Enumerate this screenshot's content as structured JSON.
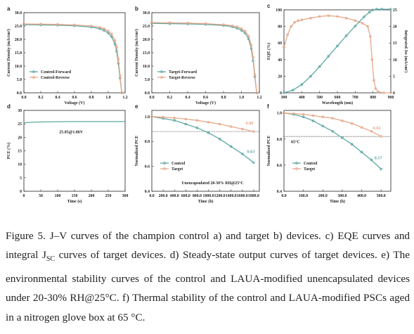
{
  "colors": {
    "control": "#5fa8a3",
    "target": "#e6a98c",
    "axis": "#222222"
  },
  "panels": {
    "a": {
      "letter": "a",
      "xlabel": "Voltage (V)",
      "ylabel": "Current Density (mA/cm²)",
      "legend": [
        "Control-Forward",
        "Control-Reverse"
      ]
    },
    "b": {
      "letter": "b",
      "xlabel": "Voltage (V)",
      "ylabel": "Current Density (mA/cm²)",
      "legend": [
        "Target-Forward",
        "Target-Reverse"
      ]
    },
    "c": {
      "letter": "c",
      "xlabel": "Wavelength (nm)",
      "ylabel": "EQE (%)",
      "ylabel2": "Integrated Jsc (mA/cm²)"
    },
    "d": {
      "letter": "d",
      "xlabel": "Time (s)",
      "ylabel": "PCE (%)",
      "annotation": "25.85@1.06V"
    },
    "e": {
      "letter": "e",
      "xlabel": "Time (h)",
      "ylabel": "Normalized PCE",
      "legend": [
        "Control",
        "Target"
      ],
      "note": "Unencapsulated 20-30% RH@25°C",
      "label_target": "0.88",
      "label_control": "0.63"
    },
    "f": {
      "letter": "f",
      "xlabel": "Time (h)",
      "ylabel": "Normalized PCE",
      "legend": [
        "Control",
        "Target"
      ],
      "note": "65°C",
      "label_target": "0.82",
      "label_control": "0.57"
    }
  },
  "chart_data": [
    {
      "panel": "a",
      "type": "line",
      "xlabel": "Voltage (V)",
      "ylabel": "Current Density (mA/cm²)",
      "xlim": [
        0,
        1.2
      ],
      "ylim": [
        0,
        30
      ],
      "xticks": [
        0.0,
        0.2,
        0.4,
        0.6,
        0.8,
        1.0,
        1.2
      ],
      "yticks": [
        0,
        5,
        10,
        15,
        20,
        25,
        30
      ],
      "series": [
        {
          "name": "Control-Forward",
          "color": "control",
          "x": [
            0,
            0.2,
            0.4,
            0.6,
            0.8,
            0.9,
            0.95,
            1.0,
            1.04,
            1.08,
            1.1,
            1.12,
            1.14,
            1.16
          ],
          "y": [
            25.5,
            25.4,
            25.3,
            25.1,
            24.6,
            24.0,
            23.4,
            22.4,
            21.0,
            18.2,
            15.5,
            11.0,
            5.5,
            0.0
          ]
        },
        {
          "name": "Control-Reverse",
          "color": "target",
          "x": [
            0,
            0.2,
            0.4,
            0.6,
            0.8,
            0.9,
            0.95,
            1.0,
            1.04,
            1.08,
            1.1,
            1.12,
            1.14,
            1.16
          ],
          "y": [
            25.8,
            25.7,
            25.6,
            25.4,
            25.0,
            24.5,
            24.0,
            23.1,
            22.0,
            19.6,
            17.2,
            12.6,
            6.5,
            0.0
          ]
        }
      ]
    },
    {
      "panel": "b",
      "type": "line",
      "xlabel": "Voltage (V)",
      "ylabel": "Current Density (mA/cm²)",
      "xlim": [
        0,
        1.2
      ],
      "ylim": [
        0,
        30
      ],
      "xticks": [
        0.0,
        0.2,
        0.4,
        0.6,
        0.8,
        1.0,
        1.2
      ],
      "yticks": [
        0,
        5,
        10,
        15,
        20,
        25,
        30
      ],
      "series": [
        {
          "name": "Target-Forward",
          "color": "control",
          "x": [
            0,
            0.2,
            0.4,
            0.6,
            0.8,
            0.9,
            0.95,
            1.0,
            1.04,
            1.08,
            1.11,
            1.13,
            1.15,
            1.17
          ],
          "y": [
            26.0,
            25.9,
            25.8,
            25.6,
            25.2,
            24.7,
            24.2,
            23.4,
            22.4,
            20.2,
            16.5,
            12.0,
            6.0,
            0.0
          ]
        },
        {
          "name": "Target-Reverse",
          "color": "target",
          "x": [
            0,
            0.2,
            0.4,
            0.6,
            0.8,
            0.9,
            0.95,
            1.0,
            1.04,
            1.08,
            1.11,
            1.13,
            1.15,
            1.17
          ],
          "y": [
            26.3,
            26.2,
            26.1,
            25.9,
            25.5,
            25.1,
            24.7,
            24.0,
            23.1,
            21.2,
            17.8,
            13.2,
            6.8,
            0.0
          ]
        }
      ]
    },
    {
      "panel": "c",
      "type": "line",
      "xlabel": "Wavelength (nm)",
      "ylabel": "EQE (%)",
      "y2label": "Integrated Jsc (mA/cm²)",
      "xlim": [
        300,
        900
      ],
      "ylim": [
        0,
        100
      ],
      "y2lim": [
        0,
        25
      ],
      "xticks": [
        300,
        400,
        500,
        600,
        700,
        800,
        900
      ],
      "yticks": [
        0,
        20,
        40,
        60,
        80,
        100
      ],
      "y2ticks": [
        0,
        5,
        10,
        15,
        20,
        25
      ],
      "series": [
        {
          "name": "EQE",
          "color": "target",
          "x": [
            300,
            320,
            340,
            360,
            380,
            400,
            450,
            500,
            550,
            600,
            650,
            700,
            740,
            770,
            785,
            795,
            805,
            815,
            830,
            860,
            900
          ],
          "y": [
            55,
            70,
            80,
            85,
            87,
            88,
            90,
            92,
            93,
            92,
            90,
            87,
            84,
            80,
            68,
            40,
            15,
            5,
            1,
            0,
            0
          ]
        },
        {
          "name": "Integrated Jsc",
          "color": "control",
          "axis": "y2",
          "x": [
            300,
            350,
            400,
            450,
            500,
            550,
            600,
            650,
            700,
            750,
            780,
            800,
            820,
            850,
            900
          ],
          "y": [
            0,
            0.8,
            2.5,
            5.0,
            7.9,
            11.0,
            14.1,
            17.2,
            20.1,
            22.9,
            24.3,
            25.0,
            25.2,
            25.2,
            25.2
          ]
        }
      ]
    },
    {
      "panel": "d",
      "type": "line",
      "xlabel": "Time (s)",
      "ylabel": "PCE (%)",
      "xlim": [
        0,
        300
      ],
      "ylim": [
        0,
        30
      ],
      "xticks": [
        0,
        50,
        100,
        150,
        200,
        250,
        300
      ],
      "yticks": [
        0,
        5,
        10,
        15,
        20,
        25,
        30
      ],
      "series": [
        {
          "color": "control",
          "x": [
            0,
            20,
            50,
            100,
            150,
            200,
            250,
            300
          ],
          "y": [
            25.4,
            25.6,
            25.7,
            25.8,
            25.85,
            25.85,
            25.85,
            25.85
          ]
        }
      ]
    },
    {
      "panel": "e",
      "type": "line",
      "xlabel": "Time (h)",
      "ylabel": "Normalized PCE",
      "xlim": [
        0,
        1900
      ],
      "ylim": [
        0.4,
        1.05
      ],
      "xticks": [
        0,
        200,
        400,
        600,
        800,
        1000,
        1200,
        1400,
        1600,
        1800
      ],
      "yticks": [
        0.4,
        0.6,
        0.8,
        1.0
      ],
      "reference_line": 0.88,
      "series": [
        {
          "name": "Control",
          "color": "control",
          "x": [
            0,
            200,
            400,
            600,
            800,
            1000,
            1200,
            1400,
            1600,
            1800
          ],
          "y": [
            1.0,
            0.985,
            0.97,
            0.94,
            0.91,
            0.87,
            0.82,
            0.76,
            0.7,
            0.63
          ]
        },
        {
          "name": "Target",
          "color": "target",
          "x": [
            0,
            200,
            400,
            600,
            800,
            1000,
            1200,
            1400,
            1600,
            1800
          ],
          "y": [
            1.0,
            0.995,
            0.99,
            0.98,
            0.97,
            0.955,
            0.94,
            0.92,
            0.9,
            0.88
          ]
        }
      ]
    },
    {
      "panel": "f",
      "type": "line",
      "xlabel": "Time (h)",
      "ylabel": "Normalized PCE",
      "xlim": [
        0,
        550
      ],
      "ylim": [
        0.4,
        1.02
      ],
      "xticks": [
        0,
        100,
        200,
        300,
        400,
        500
      ],
      "yticks": [
        0.4,
        0.6,
        0.8,
        1.0
      ],
      "reference_line": 0.82,
      "series": [
        {
          "name": "Control",
          "color": "control",
          "x": [
            0,
            50,
            100,
            150,
            200,
            250,
            300,
            350,
            400,
            450,
            500
          ],
          "y": [
            1.0,
            0.99,
            0.97,
            0.94,
            0.9,
            0.86,
            0.81,
            0.76,
            0.7,
            0.64,
            0.57
          ]
        },
        {
          "name": "Target",
          "color": "target",
          "x": [
            0,
            50,
            100,
            150,
            200,
            250,
            300,
            350,
            400,
            450,
            500
          ],
          "y": [
            1.0,
            0.995,
            0.99,
            0.98,
            0.97,
            0.96,
            0.94,
            0.92,
            0.89,
            0.86,
            0.82
          ]
        }
      ]
    }
  ],
  "caption": {
    "fig_label": "Figure 5.",
    "part1": "J–V curves of the champion control a) and target b) devices. c) EQE curves and integral J",
    "sub": "SC",
    "part2": " curves of target devices. d) Steady-state output curves of target devices. e) The environmental stability curves of the control and LAUA-modified unencapsulated devices under 20-30% RH@25°C. f) Thermal stability of the control and LAUA-modified PSCs aged in a nitrogen glove box at 65 °C."
  }
}
